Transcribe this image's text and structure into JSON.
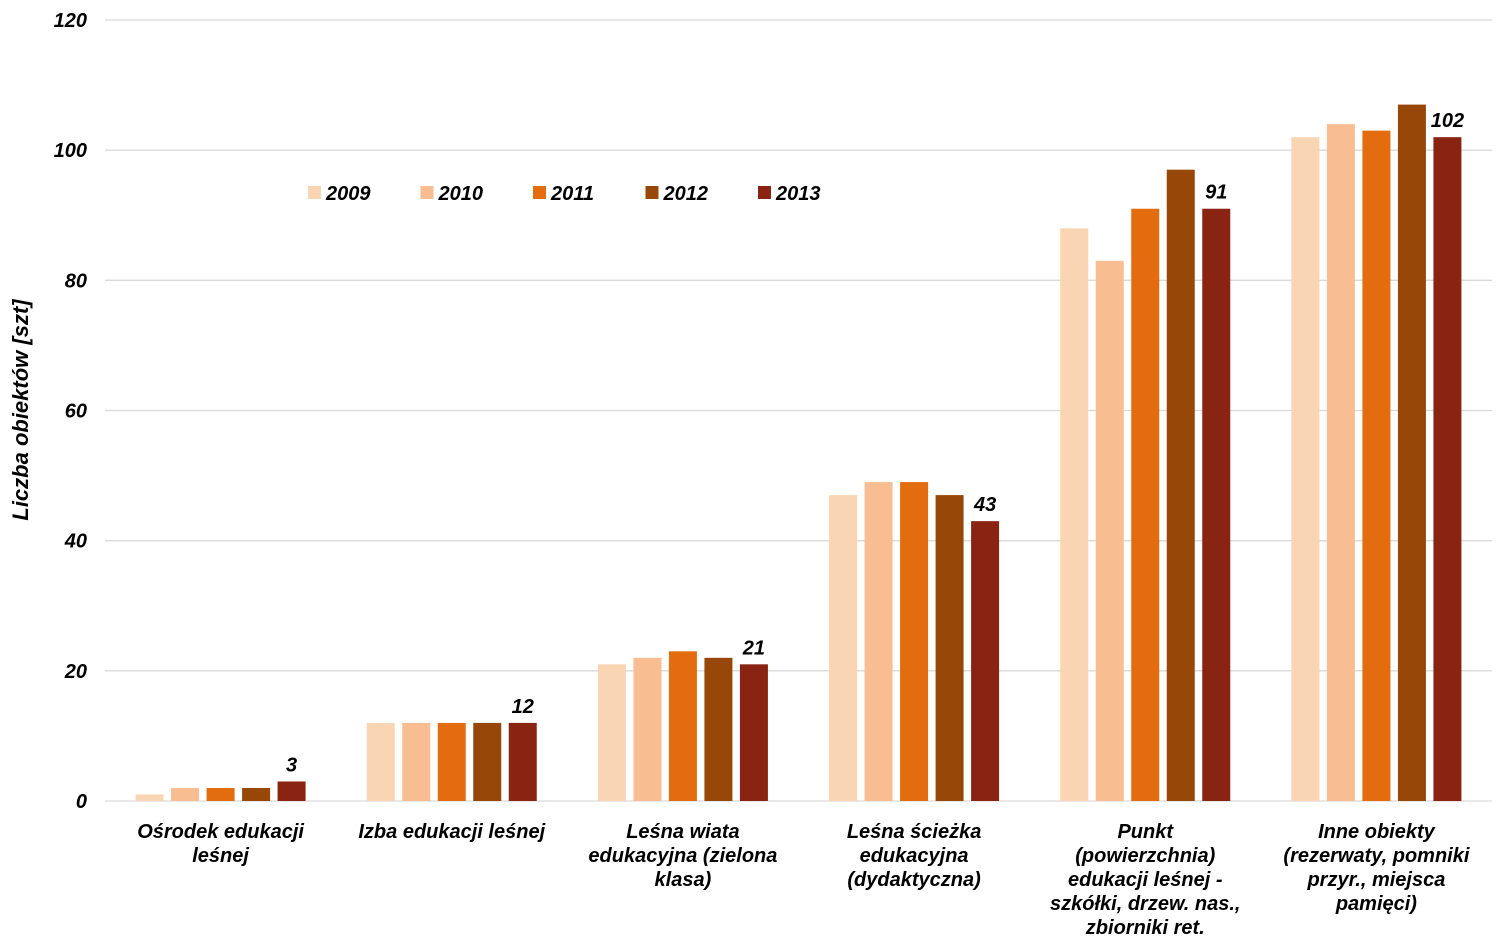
{
  "chart_data": {
    "type": "bar",
    "title": "",
    "xlabel": "",
    "ylabel": "Liczba obiektów [szt]",
    "ylim": [
      0,
      120
    ],
    "yticks": [
      0,
      20,
      40,
      60,
      80,
      100,
      120
    ],
    "grid": true,
    "legend_position": "top-left inside plot",
    "categories": [
      [
        "Ośrodek edukacji",
        "leśnej"
      ],
      [
        "Izba edukacji leśnej"
      ],
      [
        "Leśna wiata",
        "edukacyjna (zielona",
        "klasa)"
      ],
      [
        "Leśna ścieżka",
        "edukacyjna",
        "(dydaktyczna)"
      ],
      [
        "Punkt",
        "(powierzchnia)",
        "edukacji leśnej -",
        "szkółki, drzew. nas.,",
        "zbiorniki ret."
      ],
      [
        "Inne obiekty",
        "(rezerwaty, pomniki",
        "przyr., miejsca",
        "pamięci)"
      ]
    ],
    "series": [
      {
        "name": "2009",
        "color": "#FAD5B3",
        "values": [
          1,
          12,
          21,
          47,
          88,
          102
        ]
      },
      {
        "name": "2010",
        "color": "#F8BE91",
        "values": [
          2,
          12,
          22,
          49,
          83,
          104
        ]
      },
      {
        "name": "2011",
        "color": "#E36C0F",
        "values": [
          2,
          12,
          23,
          49,
          91,
          103
        ]
      },
      {
        "name": "2012",
        "color": "#974809",
        "values": [
          2,
          12,
          22,
          47,
          97,
          107
        ]
      },
      {
        "name": "2013",
        "color": "#8A2412",
        "values": [
          3,
          12,
          21,
          43,
          91,
          102
        ]
      }
    ],
    "data_labels": {
      "series": "2013",
      "values": [
        3,
        12,
        21,
        43,
        91,
        102
      ]
    }
  }
}
